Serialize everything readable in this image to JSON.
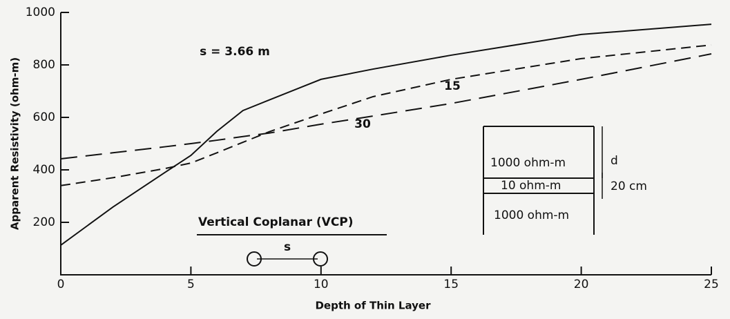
{
  "chart_data": {
    "type": "line",
    "xlabel": "Depth of Thin Layer",
    "ylabel": "Apparent Resistivity (ohm-m)",
    "x": [
      0,
      2,
      4,
      5,
      6,
      7,
      8,
      10,
      12,
      15,
      20,
      25
    ],
    "series": [
      {
        "name": "s = 3.66 m",
        "color": "#111111",
        "style": "solid",
        "values": [
          113,
          258,
          390,
          455,
          547,
          626,
          666,
          745,
          784,
          837,
          916,
          955
        ]
      },
      {
        "name": "15",
        "color": "#111111",
        "style": "dashed",
        "values": [
          340,
          370,
          405,
          426,
          465,
          505,
          545,
          613,
          679,
          745,
          824,
          876
        ]
      },
      {
        "name": "30",
        "color": "#111111",
        "style": "longdash",
        "values": [
          442,
          465,
          488,
          500,
          513,
          527,
          540,
          574,
          605,
          653,
          745,
          842
        ]
      }
    ],
    "xlim": [
      0,
      25
    ],
    "xticks": [
      0,
      5,
      10,
      15,
      20,
      25
    ],
    "ylim": [
      0,
      1000
    ],
    "yticks": [
      200,
      400,
      600,
      800,
      1000
    ],
    "annotations": {
      "config": "Vertical   Coplanar (VCP)",
      "spacing": "s",
      "layer_top": "1000 ohm-m",
      "layer_thin": "10 ohm-m",
      "layer_bottom": "1000 ohm-m",
      "depth": "d",
      "thickness": "20 cm"
    }
  }
}
